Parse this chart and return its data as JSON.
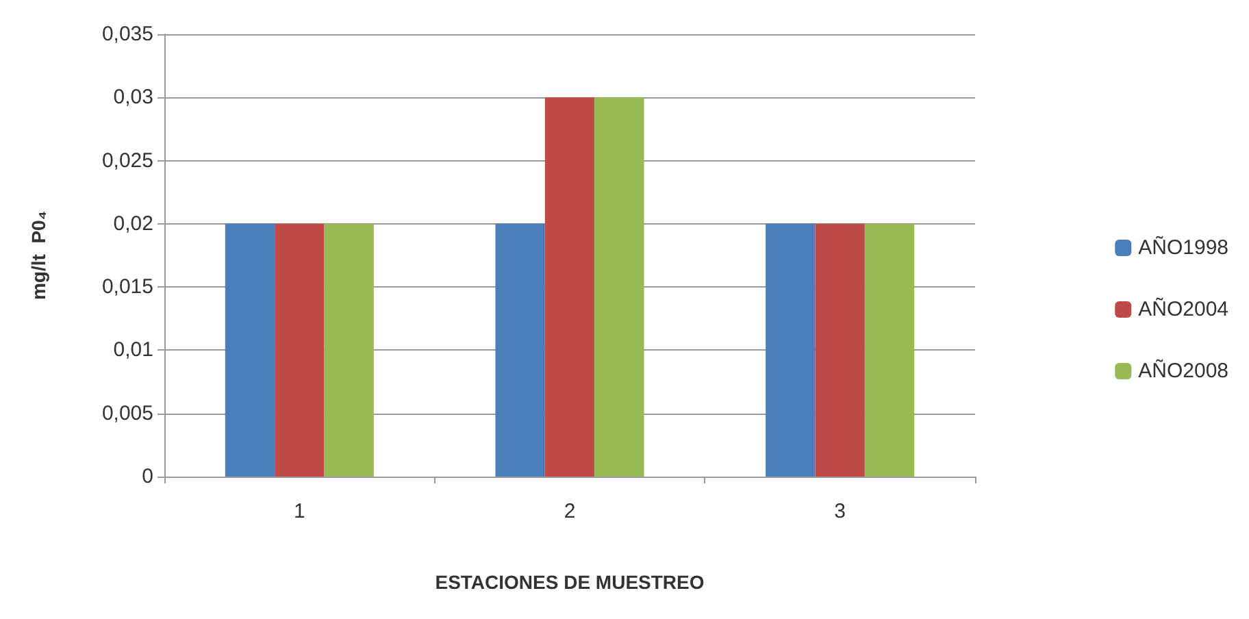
{
  "chart_data": {
    "type": "bar",
    "xlabel": "ESTACIONES DE MUESTREO",
    "ylabel": "mg/lt  P0₄",
    "categories": [
      "1",
      "2",
      "3"
    ],
    "series": [
      {
        "name": "AÑO1998",
        "color": "#4a7ebb",
        "values": [
          0.02,
          0.02,
          0.02
        ]
      },
      {
        "name": "AÑO2004",
        "color": "#be4b48",
        "values": [
          0.02,
          0.03,
          0.02
        ]
      },
      {
        "name": "AÑO2008",
        "color": "#98b954",
        "values": [
          0.02,
          0.03,
          0.02
        ]
      }
    ],
    "ylim": [
      0,
      0.035
    ],
    "yticks": [
      0,
      {
        "value": 0.005,
        "label": "0,005"
      },
      {
        "value": 0.01,
        "label": "0,01"
      },
      {
        "value": 0.015,
        "label": "0,015"
      },
      {
        "value": 0.02,
        "label": "0,02"
      },
      {
        "value": 0.025,
        "label": "0,025"
      },
      {
        "value": 0.03,
        "label": "0,03"
      },
      {
        "value": 0.035,
        "label": "0,035"
      }
    ],
    "grid": "y",
    "legend": "right"
  }
}
